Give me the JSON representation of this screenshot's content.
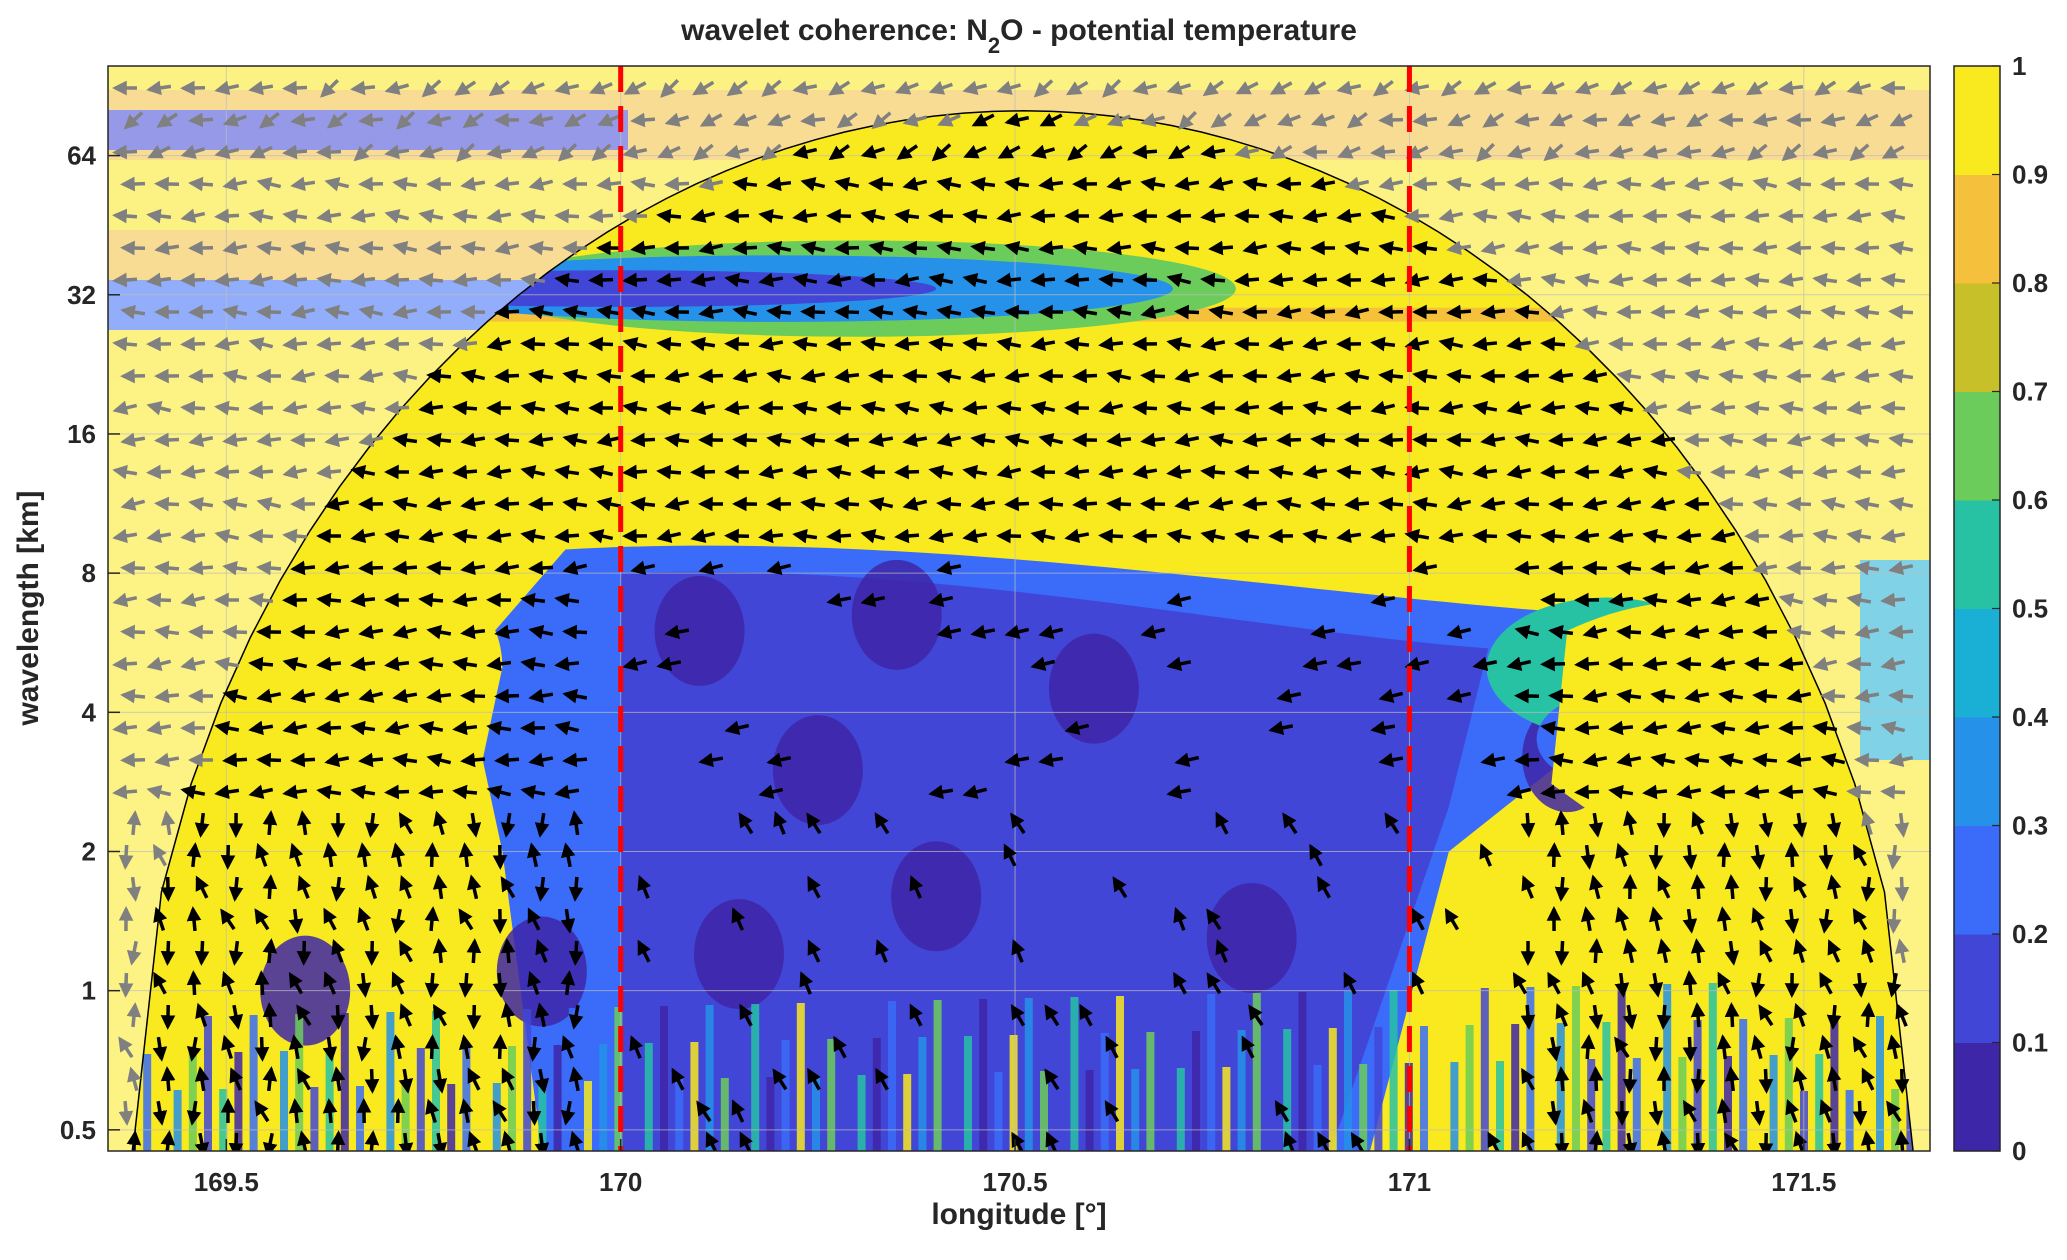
{
  "chart_data": {
    "type": "heatmap",
    "title": "wavelet coherence: N2O - potential temperature",
    "title_main": "wavelet coherence: N",
    "title_sub": "2",
    "title_rest": "O - potential temperature",
    "xlabel": "longitude [°]",
    "ylabel": "wavelength [km]",
    "xlim": [
      169.35,
      171.66
    ],
    "ylim": [
      0.45,
      100
    ],
    "yscale": "log2",
    "xticks": [
      169.5,
      170,
      170.5,
      171,
      171.5
    ],
    "xtick_labels": [
      "169.5",
      "170",
      "170.5",
      "171",
      "171.5"
    ],
    "yticks": [
      0.5,
      1,
      2,
      4,
      8,
      16,
      32,
      64
    ],
    "ytick_labels": [
      "0.5",
      "1",
      "2",
      "4",
      "8",
      "16",
      "32",
      "64"
    ],
    "colorbar": {
      "range": [
        0,
        1
      ],
      "ticks": [
        0,
        0.1,
        0.2,
        0.3,
        0.4,
        0.5,
        0.6,
        0.7,
        0.8,
        0.9,
        1
      ],
      "tick_labels": [
        "0",
        "0.1",
        "0.2",
        "0.3",
        "0.4",
        "0.5",
        "0.6",
        "0.7",
        "0.8",
        "0.9",
        "1"
      ],
      "colors": [
        "#3e26a8",
        "#4246d6",
        "#3a6cf9",
        "#2591e9",
        "#1ab0d5",
        "#27c2a4",
        "#6ccc5b",
        "#c8c029",
        "#f5c03b",
        "#f9e91f"
      ]
    },
    "reference_lines": [
      {
        "x": 170.0,
        "color": "#ff0000",
        "style": "dashed"
      },
      {
        "x": 171.0,
        "color": "#ff0000",
        "style": "dashed"
      }
    ],
    "regions": {
      "high_coherence_band_upper": {
        "wavelength_km": [
          10,
          28
        ],
        "coherence": 0.9
      },
      "low_coherence_band_32km": {
        "wavelength_km": [
          27,
          40
        ],
        "x_range": [
          169.35,
          170.75
        ],
        "coherence": 0.2
      },
      "low_coherence_block": {
        "wavelength_km": [
          0.45,
          9
        ],
        "x_range": [
          169.9,
          171.2
        ],
        "coherence": 0.1
      },
      "high_coherence_left": {
        "wavelength_km": [
          1,
          10
        ],
        "x_range": [
          169.4,
          169.85
        ],
        "coherence": 0.95
      },
      "high_coherence_right": {
        "wavelength_km": [
          1,
          8
        ],
        "x_range": [
          171.2,
          171.6
        ],
        "coherence": 0.9
      }
    },
    "phase_arrows": "predominantly pointing left (anti-phase) in high-coherence regions",
    "grid": true
  }
}
